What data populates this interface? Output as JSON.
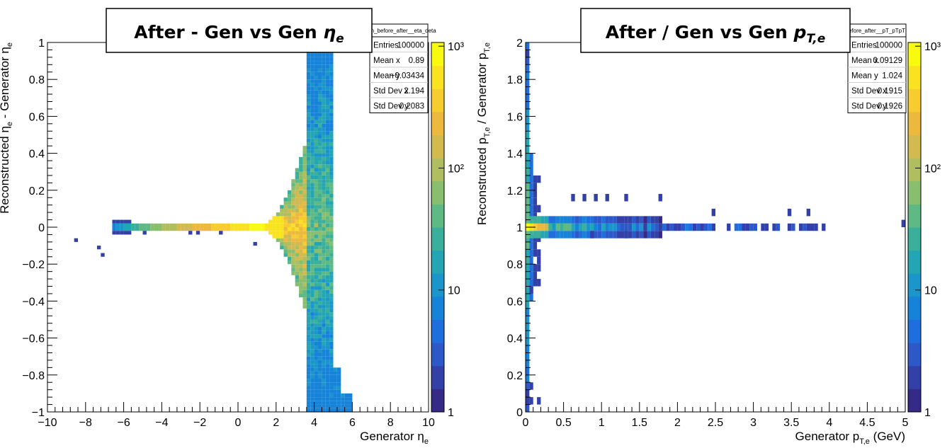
{
  "palette": [
    "#352a87",
    "#3240a8",
    "#2d58c7",
    "#1f6edd",
    "#1683d9",
    "#1a96ca",
    "#23a5b4",
    "#3ab09c",
    "#5eb984",
    "#89be6f",
    "#b0be5f",
    "#d2ba4f",
    "#ecb93e",
    "#f6cc2e",
    "#f9e320",
    "#f9fb0e"
  ],
  "chart_data": [
    {
      "type": "heatmap",
      "title": "After - Gen vs Gen",
      "title_symbol": "η",
      "title_subscript": "e",
      "hist_name": "ctron_before_after__eta_deta",
      "xlabel": "Generator η",
      "xlabel_sub": "e",
      "ylabel": "Reconstructed η",
      "ylabel_sub": "e",
      "ylabel_suffix": "- Generator η",
      "xlim": [
        -10,
        10
      ],
      "ylim": [
        -1,
        1
      ],
      "x_ticks": [
        "−10",
        "−8",
        "−6",
        "−4",
        "−2",
        "0",
        "2",
        "4",
        "6",
        "8",
        "10"
      ],
      "y_ticks": [
        "−1",
        "−0.8",
        "−0.6",
        "−0.4",
        "−0.2",
        "0",
        "0.2",
        "0.4",
        "0.6",
        "0.8",
        "1"
      ],
      "z_scale": "log",
      "z_ticks": [
        "1",
        "10",
        "10²",
        "10³"
      ],
      "stats": [
        {
          "label": "Entries",
          "value": "100000"
        },
        {
          "label": "Mean x",
          "value": "0.89"
        },
        {
          "label": "Mean y",
          "value": "−0.03434"
        },
        {
          "label": "Std Dev x",
          "value": "2.194"
        },
        {
          "label": "Std Dev y",
          "value": "0.2083"
        }
      ],
      "description": "Dense horizontal band at reconstructed-minus-generator ≈ 0 for generator η from about −6.5 to 1.5 (peak near −1 to 1.5), fanning out between η 2 and 6 to the full ±1 range; isolated low-count bins near η −8.5 to −7.5."
    },
    {
      "type": "heatmap",
      "title": "After / Gen vs Gen",
      "title_symbol": "p",
      "title_subscript": "T,e",
      "hist_name": "efore_after__pT_pTpT",
      "xlabel": "Generator p",
      "xlabel_sub": "T,e",
      "xlabel_suffix": "(GeV)",
      "ylabel": "Reconstructed p",
      "ylabel_sub": "T,e",
      "ylabel_suffix": "/ Generator p",
      "xlim": [
        0,
        5
      ],
      "ylim": [
        0,
        2
      ],
      "x_ticks": [
        "0",
        "0.5",
        "1",
        "1.5",
        "2",
        "2.5",
        "3",
        "3.5",
        "4",
        "4.5",
        "5"
      ],
      "y_ticks": [
        "0",
        "0.2",
        "0.4",
        "0.6",
        "0.8",
        "1",
        "1.2",
        "1.4",
        "1.6",
        "1.8",
        "2"
      ],
      "z_scale": "log",
      "z_ticks": [
        "1",
        "10",
        "10²",
        "10³"
      ],
      "stats": [
        {
          "label": "Entries",
          "value": "100000"
        },
        {
          "label": "Mean x",
          "value": "0.09129"
        },
        {
          "label": "Mean y",
          "value": "1.024"
        },
        {
          "label": "Std Dev x",
          "value": "0.1915"
        },
        {
          "label": "Std Dev y",
          "value": "0.1926"
        }
      ],
      "description": "Narrow band at ratio ≈ 1 from p_T 0 to about 3.9 GeV (highest counts below 0.3 GeV), vertical spread of low-p_T bins from ratio 0 to 2, sparse bins near 1.0–1.2 GeV around ratio 1.1 and an isolated bin near 4.95 GeV."
    }
  ]
}
